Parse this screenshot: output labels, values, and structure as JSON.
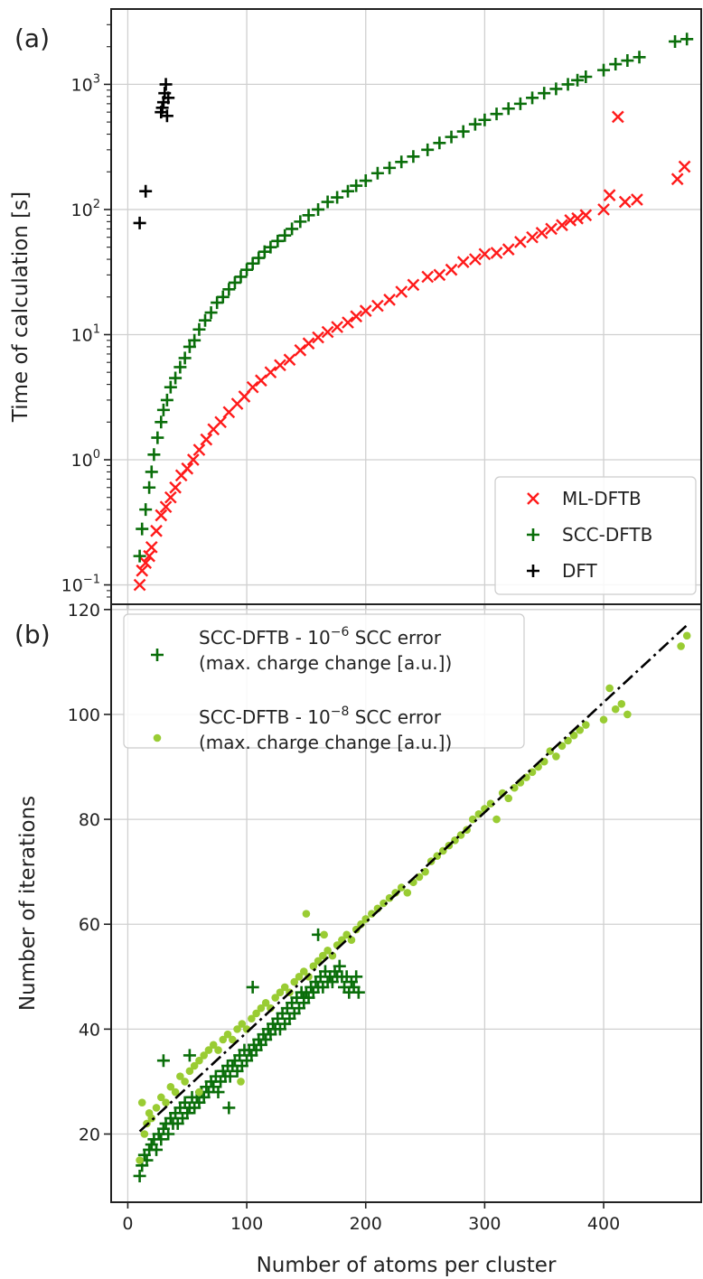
{
  "colors": {
    "ml_dftb": "#ff1a1a",
    "scc_dftb": "#0a6e0a",
    "dft": "#000000",
    "scc_tol_low": "#0a6e0a",
    "scc_tol_high": "#99cc33",
    "fit_line": "#000000",
    "grid": "#d0d0d0",
    "axes": "#222222"
  },
  "chart_data": [
    {
      "type": "scatter",
      "panel_label": "(a)",
      "ylabel": "Time of calculation [s]",
      "xlabel": "",
      "xlim": [
        -14,
        482
      ],
      "ylim": [
        0.07,
        4000
      ],
      "y_scale": "log",
      "grid": true,
      "legend_position": "bottom-right",
      "yticks": [
        0.1,
        1,
        10,
        100,
        1000
      ],
      "ytick_labels": [
        {
          "base": "10",
          "exp": "−1"
        },
        {
          "base": "10",
          "exp": "0"
        },
        {
          "base": "10",
          "exp": "1"
        },
        {
          "base": "10",
          "exp": "2"
        },
        {
          "base": "10",
          "exp": "3"
        }
      ],
      "series": [
        {
          "name": "ML-DFTB",
          "marker": "x",
          "x": [
            10,
            12,
            15,
            18,
            20,
            24,
            28,
            32,
            36,
            40,
            45,
            50,
            55,
            60,
            66,
            72,
            78,
            85,
            92,
            98,
            105,
            112,
            120,
            128,
            136,
            145,
            152,
            160,
            168,
            176,
            185,
            192,
            200,
            210,
            220,
            230,
            240,
            252,
            262,
            272,
            282,
            292,
            300,
            310,
            320,
            330,
            340,
            348,
            356,
            365,
            372,
            378,
            385,
            400,
            405,
            412,
            418,
            428,
            462,
            468
          ],
          "y": [
            0.1,
            0.13,
            0.15,
            0.17,
            0.2,
            0.27,
            0.36,
            0.42,
            0.5,
            0.6,
            0.75,
            0.85,
            1.0,
            1.2,
            1.45,
            1.75,
            2.0,
            2.4,
            2.8,
            3.2,
            3.8,
            4.3,
            5.0,
            5.7,
            6.3,
            7.5,
            8.5,
            9.5,
            10.5,
            11.5,
            12.5,
            14.0,
            15.5,
            17.0,
            19.0,
            22.0,
            25.0,
            29.0,
            30.0,
            33.0,
            38.0,
            40.0,
            44.0,
            45.0,
            48.0,
            55.0,
            60.0,
            65.0,
            70.0,
            75.0,
            82.0,
            85.0,
            90.0,
            100.0,
            130.0,
            550.0,
            115.0,
            120.0,
            175.0,
            220.0
          ]
        },
        {
          "name": "SCC-DFTB",
          "marker": "plus",
          "x": [
            10,
            12,
            15,
            18,
            20,
            22,
            25,
            28,
            30,
            33,
            36,
            40,
            44,
            48,
            52,
            56,
            60,
            65,
            70,
            75,
            80,
            85,
            90,
            95,
            100,
            105,
            110,
            115,
            120,
            126,
            132,
            138,
            145,
            152,
            160,
            168,
            176,
            185,
            192,
            200,
            210,
            220,
            230,
            240,
            252,
            262,
            272,
            282,
            292,
            300,
            310,
            320,
            330,
            340,
            350,
            360,
            370,
            378,
            385,
            400,
            410,
            420,
            430,
            460,
            470
          ],
          "y": [
            0.17,
            0.28,
            0.4,
            0.6,
            0.8,
            1.1,
            1.5,
            2.0,
            2.5,
            3.0,
            3.8,
            4.5,
            5.5,
            6.5,
            8.0,
            9.0,
            11.0,
            13.0,
            15.0,
            18.0,
            20.0,
            23.0,
            26.0,
            29.0,
            33.0,
            37.0,
            41.0,
            46.0,
            50.0,
            56.0,
            62.0,
            70.0,
            80.0,
            90.0,
            100.0,
            115.0,
            125.0,
            140.0,
            155.0,
            170.0,
            195.0,
            215.0,
            240.0,
            265.0,
            300.0,
            340.0,
            380.0,
            420.0,
            480.0,
            520.0,
            580.0,
            640.0,
            700.0,
            780.0,
            850.0,
            920.0,
            1000.0,
            1080.0,
            1150.0,
            1300.0,
            1450.0,
            1550.0,
            1650.0,
            2200.0,
            2300.0
          ]
        },
        {
          "name": "DFT",
          "marker": "plus",
          "x": [
            10,
            15,
            28,
            29,
            30,
            31,
            32,
            33,
            34
          ],
          "y": [
            78,
            140,
            600,
            650,
            720,
            850,
            1000,
            560,
            780
          ]
        }
      ]
    },
    {
      "type": "scatter",
      "panel_label": "(b)",
      "ylabel": "Number of iterations",
      "xlabel": "Number of atoms per cluster",
      "xlim": [
        -14,
        482
      ],
      "ylim": [
        7,
        121
      ],
      "grid": true,
      "legend_position": "top-left",
      "xticks": [
        0,
        100,
        200,
        300,
        400
      ],
      "yticks": [
        20,
        40,
        60,
        80,
        100,
        120
      ],
      "series": [
        {
          "name": "SCC-DFTB - 10",
          "name_exp": "−6",
          "name_suffix": " SCC error",
          "name_line2": "(max. charge change [a.u.])",
          "marker": "plus",
          "x": [
            10,
            12,
            14,
            16,
            18,
            20,
            22,
            24,
            26,
            28,
            30,
            32,
            34,
            36,
            38,
            40,
            42,
            44,
            46,
            48,
            50,
            52,
            54,
            56,
            58,
            60,
            62,
            64,
            66,
            68,
            70,
            72,
            74,
            76,
            78,
            80,
            82,
            84,
            86,
            88,
            90,
            92,
            94,
            96,
            98,
            100,
            102,
            104,
            106,
            108,
            110,
            112,
            114,
            116,
            118,
            120,
            122,
            124,
            126,
            128,
            130,
            132,
            134,
            136,
            138,
            140,
            142,
            144,
            146,
            148,
            150,
            152,
            154,
            156,
            158,
            160,
            162,
            164,
            166,
            168,
            170,
            172,
            174,
            176,
            178,
            180,
            182,
            184,
            186,
            188,
            190,
            192,
            194,
            30,
            52,
            85,
            105,
            148,
            160
          ],
          "y": [
            12,
            14,
            16,
            15,
            17,
            18,
            19,
            17,
            20,
            19,
            21,
            22,
            20,
            23,
            22,
            24,
            22,
            25,
            23,
            26,
            24,
            25,
            27,
            25,
            27,
            26,
            28,
            27,
            29,
            28,
            30,
            29,
            31,
            28,
            30,
            32,
            31,
            33,
            31,
            33,
            34,
            32,
            35,
            33,
            36,
            34,
            36,
            35,
            37,
            36,
            38,
            37,
            39,
            38,
            40,
            39,
            41,
            40,
            42,
            40,
            43,
            41,
            44,
            42,
            45,
            43,
            46,
            44,
            47,
            45,
            47,
            46,
            48,
            47,
            49,
            48,
            50,
            48,
            51,
            49,
            50,
            49,
            51,
            50,
            52,
            50,
            48,
            50,
            47,
            49,
            48,
            50,
            47,
            34,
            35,
            25,
            48,
            46,
            58
          ]
        },
        {
          "name": "SCC-DFTB - 10",
          "name_exp": "−8",
          "name_suffix": " SCC error",
          "name_line2": "(max. charge change [a.u.])",
          "marker": "dot",
          "x": [
            10,
            12,
            14,
            16,
            18,
            20,
            24,
            28,
            32,
            36,
            40,
            44,
            48,
            52,
            56,
            60,
            64,
            68,
            72,
            76,
            80,
            84,
            88,
            92,
            96,
            100,
            104,
            108,
            112,
            116,
            120,
            124,
            128,
            132,
            136,
            140,
            144,
            148,
            152,
            156,
            160,
            164,
            168,
            172,
            176,
            180,
            184,
            188,
            192,
            196,
            200,
            205,
            210,
            215,
            220,
            225,
            230,
            235,
            240,
            245,
            250,
            255,
            260,
            265,
            270,
            275,
            280,
            285,
            290,
            295,
            300,
            305,
            310,
            315,
            320,
            325,
            330,
            335,
            340,
            345,
            350,
            355,
            360,
            365,
            370,
            375,
            380,
            385,
            400,
            405,
            410,
            415,
            420,
            465,
            470,
            150,
            165,
            95,
            60
          ],
          "y": [
            15,
            26,
            20,
            22,
            24,
            23,
            25,
            27,
            26,
            29,
            28,
            31,
            30,
            32,
            33,
            34,
            35,
            36,
            37,
            36,
            38,
            39,
            38,
            40,
            41,
            40,
            42,
            43,
            44,
            45,
            44,
            46,
            47,
            48,
            47,
            49,
            50,
            51,
            50,
            52,
            53,
            54,
            55,
            54,
            56,
            57,
            58,
            57,
            59,
            60,
            61,
            62,
            63,
            64,
            65,
            66,
            67,
            66,
            68,
            69,
            70,
            72,
            73,
            74,
            75,
            76,
            77,
            78,
            80,
            81,
            82,
            83,
            80,
            85,
            84,
            86,
            87,
            88,
            89,
            90,
            91,
            93,
            92,
            94,
            95,
            96,
            97,
            98,
            99,
            105,
            101,
            102,
            100,
            113,
            115,
            62,
            58,
            30,
            28
          ]
        }
      ],
      "fit_line": {
        "style": "dash-dot",
        "x": [
          10,
          470
        ],
        "y": [
          20.5,
          117
        ]
      }
    }
  ]
}
